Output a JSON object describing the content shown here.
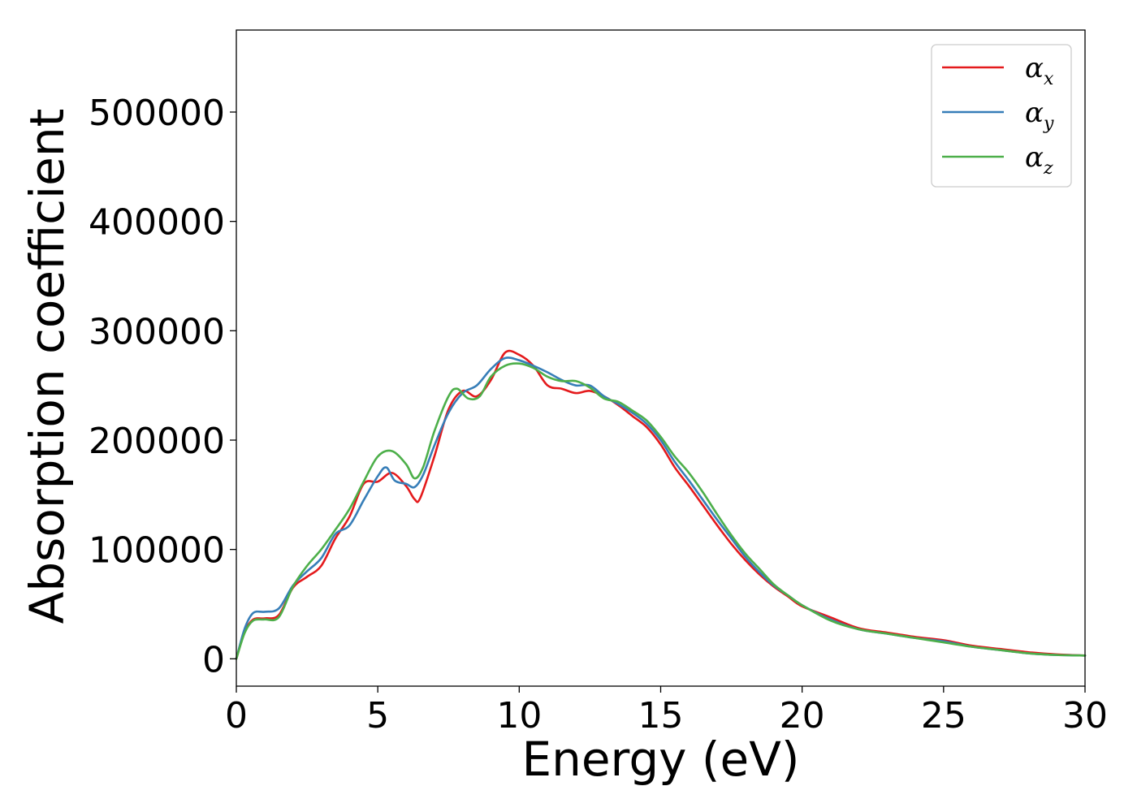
{
  "chart_data": {
    "type": "line",
    "title": "",
    "xlabel": "Energy (eV)",
    "ylabel": "Absorption coefficient",
    "xlim": [
      0,
      30
    ],
    "ylim": [
      -25000,
      575000
    ],
    "xticks": [
      0,
      5,
      10,
      15,
      20,
      25,
      30
    ],
    "yticks": [
      0,
      100000,
      200000,
      300000,
      400000,
      500000
    ],
    "xtick_labels": [
      "0",
      "5",
      "10",
      "15",
      "20",
      "25",
      "30"
    ],
    "ytick_labels": [
      "0",
      "100000",
      "200000",
      "300000",
      "400000",
      "500000"
    ],
    "grid": false,
    "legend_position": "top-right",
    "series": [
      {
        "name": "α_x",
        "label_main": "α",
        "label_sub": "x",
        "color": "#e41a1c",
        "x": [
          0,
          0.3,
          0.6,
          1.0,
          1.5,
          2.0,
          2.5,
          3.0,
          3.5,
          4.0,
          4.5,
          5.0,
          5.5,
          6.0,
          6.3,
          6.5,
          7.0,
          7.5,
          8.0,
          8.5,
          9.0,
          9.5,
          10.0,
          10.5,
          11.0,
          11.5,
          12.0,
          12.5,
          13.0,
          13.5,
          14.0,
          14.5,
          15.0,
          15.5,
          16.0,
          16.5,
          17.0,
          17.5,
          18.0,
          18.5,
          19.0,
          19.5,
          20.0,
          21.0,
          22.0,
          23.0,
          24.0,
          25.0,
          26.0,
          27.0,
          28.0,
          29.0,
          30.0
        ],
        "y": [
          0,
          25000,
          36000,
          37000,
          40000,
          65000,
          75000,
          85000,
          110000,
          130000,
          160000,
          162000,
          170000,
          158000,
          146000,
          147000,
          185000,
          228000,
          245000,
          240000,
          255000,
          280000,
          278000,
          268000,
          250000,
          247000,
          243000,
          245000,
          240000,
          232000,
          222000,
          212000,
          196000,
          175000,
          158000,
          140000,
          122000,
          105000,
          90000,
          77000,
          66000,
          57000,
          48000,
          38000,
          28000,
          24000,
          20000,
          17000,
          12000,
          9000,
          6000,
          4000,
          3000
        ]
      },
      {
        "name": "α_y",
        "label_main": "α",
        "label_sub": "y",
        "color": "#377eb8",
        "x": [
          0,
          0.3,
          0.6,
          1.0,
          1.5,
          2.0,
          2.5,
          3.0,
          3.5,
          4.0,
          4.5,
          5.0,
          5.3,
          5.6,
          6.0,
          6.3,
          6.6,
          7.0,
          7.5,
          8.0,
          8.5,
          9.0,
          9.5,
          10.0,
          10.5,
          11.0,
          11.5,
          12.0,
          12.5,
          13.0,
          13.5,
          14.0,
          14.5,
          15.0,
          15.5,
          16.0,
          16.5,
          17.0,
          17.5,
          18.0,
          18.5,
          19.0,
          19.5,
          20.0,
          21.0,
          22.0,
          23.0,
          24.0,
          25.0,
          26.0,
          27.0,
          28.0,
          29.0,
          30.0
        ],
        "y": [
          0,
          28000,
          42000,
          43000,
          46000,
          67000,
          80000,
          92000,
          114000,
          122000,
          145000,
          167000,
          175000,
          163000,
          160000,
          157000,
          168000,
          195000,
          225000,
          243000,
          250000,
          265000,
          275000,
          273000,
          268000,
          262000,
          255000,
          250000,
          250000,
          240000,
          233000,
          225000,
          215000,
          200000,
          180000,
          163000,
          145000,
          127000,
          110000,
          93000,
          79000,
          67000,
          58000,
          49000,
          36000,
          27000,
          23000,
          19000,
          16000,
          11000,
          8000,
          5000,
          3500,
          3000
        ]
      },
      {
        "name": "α_z",
        "label_main": "α",
        "label_sub": "z",
        "color": "#4daf4a",
        "x": [
          0,
          0.3,
          0.6,
          1.0,
          1.5,
          2.0,
          2.5,
          3.0,
          3.5,
          4.0,
          4.5,
          5.0,
          5.5,
          6.0,
          6.3,
          6.6,
          7.0,
          7.5,
          7.8,
          8.2,
          8.6,
          9.0,
          9.5,
          10.0,
          10.5,
          11.0,
          11.5,
          12.0,
          12.5,
          13.0,
          13.5,
          14.0,
          14.5,
          15.0,
          15.5,
          16.0,
          16.5,
          17.0,
          17.5,
          18.0,
          18.5,
          19.0,
          19.5,
          20.0,
          21.0,
          22.0,
          23.0,
          24.0,
          25.0,
          26.0,
          27.0,
          28.0,
          29.0,
          30.0
        ],
        "y": [
          0,
          24000,
          35000,
          36000,
          38000,
          66000,
          85000,
          100000,
          118000,
          137000,
          162000,
          185000,
          190000,
          178000,
          165000,
          175000,
          208000,
          240000,
          247000,
          238000,
          240000,
          258000,
          268000,
          270000,
          266000,
          258000,
          254000,
          254000,
          248000,
          238000,
          235000,
          227000,
          218000,
          203000,
          185000,
          170000,
          152000,
          132000,
          113000,
          96000,
          82000,
          68000,
          58000,
          49000,
          35000,
          27000,
          23000,
          19000,
          15000,
          11000,
          8000,
          5000,
          3500,
          3000
        ]
      }
    ]
  }
}
